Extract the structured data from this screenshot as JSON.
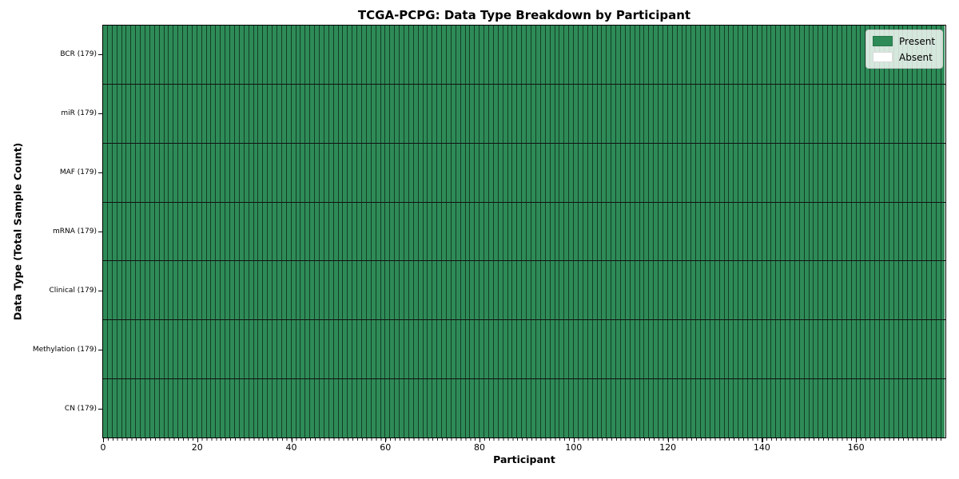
{
  "title": "TCGA-PCPG: Data Type Breakdown by Participant",
  "axes": {
    "xlabel": "Participant",
    "ylabel": "Data Type (Total Sample Count)"
  },
  "legend": {
    "position": "upper right",
    "items": [
      {
        "label": "Present",
        "color": "#2e8b57"
      },
      {
        "label": "Absent",
        "color": "#ffffff"
      }
    ]
  },
  "chart_data": {
    "type": "heatmap",
    "title": "TCGA-PCPG: Data Type Breakdown by Participant",
    "xlabel": "Participant",
    "ylabel": "Data Type (Total Sample Count)",
    "n_participants": 179,
    "xlim": [
      0,
      179
    ],
    "x_ticks": [
      0,
      20,
      40,
      60,
      80,
      100,
      120,
      140,
      160
    ],
    "rows": [
      {
        "label": "BCR (179)",
        "data_type": "BCR",
        "total_samples": 179,
        "present_count": 179,
        "absent_count": 0
      },
      {
        "label": "miR (179)",
        "data_type": "miR",
        "total_samples": 179,
        "present_count": 179,
        "absent_count": 0
      },
      {
        "label": "MAF (179)",
        "data_type": "MAF",
        "total_samples": 179,
        "present_count": 179,
        "absent_count": 0
      },
      {
        "label": "mRNA (179)",
        "data_type": "mRNA",
        "total_samples": 179,
        "present_count": 179,
        "absent_count": 0
      },
      {
        "label": "Clinical (179)",
        "data_type": "Clinical",
        "total_samples": 179,
        "present_count": 179,
        "absent_count": 0
      },
      {
        "label": "Methylation (179)",
        "data_type": "Methylation",
        "total_samples": 179,
        "present_count": 179,
        "absent_count": 0
      },
      {
        "label": "CN (179)",
        "data_type": "CN",
        "total_samples": 179,
        "present_count": 179,
        "absent_count": 0
      }
    ],
    "all_present": true,
    "colors": {
      "present": "#2e8b57",
      "absent": "#ffffff",
      "cell_edge": "rgba(0,0,0,0.55)",
      "row_divider": "#111111"
    },
    "legend_entries": [
      "Present",
      "Absent"
    ],
    "grid": "per-cell edges",
    "legend_position": "upper right"
  }
}
